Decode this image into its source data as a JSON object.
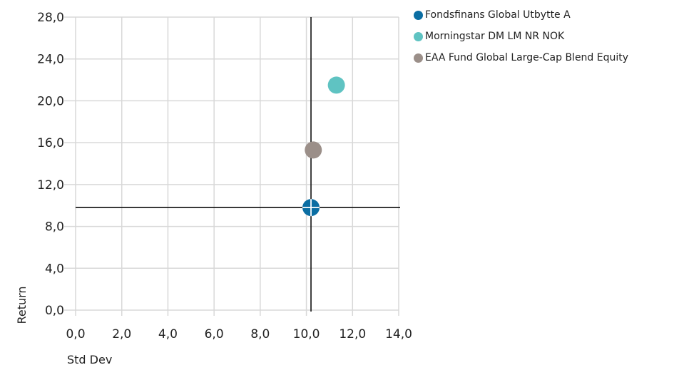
{
  "chart_data": {
    "type": "scatter",
    "xlabel": "Std Dev",
    "ylabel": "Return",
    "xlim": [
      0,
      14
    ],
    "ylim": [
      0,
      28
    ],
    "x_ticks": [
      "0,0",
      "2,0",
      "4,0",
      "6,0",
      "8,0",
      "10,0",
      "12,0",
      "14,0"
    ],
    "y_ticks": [
      "0,0",
      "4,0",
      "8,0",
      "12,0",
      "16,0",
      "20,0",
      "24,0",
      "28,0"
    ],
    "grid": true,
    "legend_position": "top-right",
    "crosshair": {
      "x": 10.2,
      "y": 9.8
    },
    "series": [
      {
        "name": "Fondsfinans Global Utbytte A",
        "color": "#0b6ea3",
        "x": 10.2,
        "y": 9.8
      },
      {
        "name": "Morningstar DM LM NR NOK",
        "color": "#5fc3c2",
        "x": 11.3,
        "y": 21.5
      },
      {
        "name": "EAA Fund Global Large-Cap Blend Equity",
        "color": "#9b8f89",
        "x": 10.3,
        "y": 15.3
      }
    ]
  }
}
